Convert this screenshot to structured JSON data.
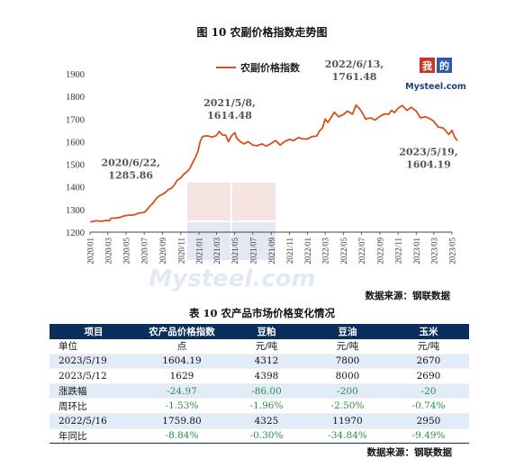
{
  "figure_title": "图 10 农副价格指数走势图",
  "chart_source": "数据来源：钢联数据",
  "table_title": "表 10 农产品市场价格变化情况",
  "table_source": "数据来源：钢联数据",
  "logo": {
    "text": "我的钢铁",
    "brand": "Mysteel.com"
  },
  "chart_data": {
    "type": "line",
    "title": "",
    "xlabel": "",
    "ylabel": "",
    "ylim": [
      1200,
      1900
    ],
    "yticks": [
      1200,
      1300,
      1400,
      1500,
      1600,
      1700,
      1800,
      1900
    ],
    "xlim": [
      "2020/01",
      "2023/05"
    ],
    "xticks": [
      "2020/01",
      "2020/03",
      "2020/05",
      "2020/07",
      "2020/09",
      "2020/11",
      "2021/01",
      "2021/03",
      "2021/05",
      "2021/07",
      "2021/09",
      "2021/11",
      "2022/01",
      "2022/03",
      "2022/05",
      "2022/07",
      "2022/09",
      "2022/11",
      "2023/01",
      "2023/03",
      "2023/05"
    ],
    "grid": false,
    "legend_position": "top-left",
    "series": [
      {
        "name": "农副价格指数",
        "color": "#d5501f",
        "x": [
          "2020/01/02",
          "2020/01/20",
          "2020/02/10",
          "2020/02/25",
          "2020/03/05",
          "2020/03/12",
          "2020/03/25",
          "2020/04/10",
          "2020/04/25",
          "2020/05/10",
          "2020/05/20",
          "2020/06/01",
          "2020/06/10",
          "2020/06/22",
          "2020/07/01",
          "2020/07/10",
          "2020/07/20",
          "2020/08/01",
          "2020/08/10",
          "2020/08/20",
          "2020/09/01",
          "2020/09/10",
          "2020/09/20",
          "2020/10/01",
          "2020/10/10",
          "2020/10/20",
          "2020/11/01",
          "2020/11/10",
          "2020/11/20",
          "2020/12/01",
          "2020/12/10",
          "2020/12/20",
          "2020/12/28",
          "2021/01/05",
          "2021/01/12",
          "2021/01/20",
          "2021/02/01",
          "2021/02/15",
          "2021/03/01",
          "2021/03/10",
          "2021/03/20",
          "2021/04/01",
          "2021/04/10",
          "2021/04/20",
          "2021/05/01",
          "2021/05/08",
          "2021/05/20",
          "2021/06/01",
          "2021/06/15",
          "2021/07/01",
          "2021/07/15",
          "2021/08/01",
          "2021/08/15",
          "2021/09/01",
          "2021/09/15",
          "2021/10/01",
          "2021/10/15",
          "2021/11/01",
          "2021/11/15",
          "2021/12/01",
          "2021/12/15",
          "2022/01/01",
          "2022/01/15",
          "2022/02/01",
          "2022/02/10",
          "2022/02/20",
          "2022/03/01",
          "2022/03/10",
          "2022/03/20",
          "2022/04/01",
          "2022/04/15",
          "2022/05/01",
          "2022/05/15",
          "2022/06/01",
          "2022/06/13",
          "2022/06/25",
          "2022/07/05",
          "2022/07/15",
          "2022/08/01",
          "2022/08/15",
          "2022/09/01",
          "2022/09/15",
          "2022/10/01",
          "2022/10/10",
          "2022/10/20",
          "2022/11/01",
          "2022/11/15",
          "2022/12/01",
          "2022/12/15",
          "2023/01/01",
          "2023/01/15",
          "2023/02/01",
          "2023/02/15",
          "2023/03/01",
          "2023/03/15",
          "2023/04/01",
          "2023/04/10",
          "2023/04/20",
          "2023/05/01",
          "2023/05/10",
          "2023/05/19"
        ],
        "values": [
          1245,
          1250,
          1248,
          1252,
          1250,
          1262,
          1262,
          1265,
          1272,
          1275,
          1275,
          1278,
          1283,
          1285.86,
          1287,
          1298,
          1315,
          1330,
          1348,
          1360,
          1368,
          1375,
          1388,
          1395,
          1408,
          1430,
          1440,
          1455,
          1465,
          1480,
          1505,
          1530,
          1555,
          1600,
          1620,
          1625,
          1625,
          1620,
          1628,
          1645,
          1630,
          1628,
          1600,
          1625,
          1640,
          1614.48,
          1600,
          1590,
          1600,
          1585,
          1582,
          1590,
          1580,
          1592,
          1605,
          1585,
          1600,
          1610,
          1605,
          1618,
          1612,
          1612,
          1622,
          1625,
          1648,
          1660,
          1700,
          1685,
          1705,
          1730,
          1710,
          1720,
          1735,
          1722,
          1761.48,
          1745,
          1725,
          1700,
          1705,
          1695,
          1712,
          1722,
          1722,
          1738,
          1728,
          1748,
          1760,
          1738,
          1752,
          1735,
          1705,
          1710,
          1702,
          1690,
          1665,
          1660,
          1648,
          1632,
          1650,
          1620,
          1604.19
        ]
      }
    ],
    "annotations": [
      {
        "x": "2020/06/22",
        "y": 1285.86,
        "line1": "2020/6/22,",
        "line2": "1285.86"
      },
      {
        "x": "2021/05/08",
        "y": 1614.48,
        "line1": "2021/5/8,",
        "line2": "1614.48"
      },
      {
        "x": "2022/06/13",
        "y": 1761.48,
        "line1": "2022/6/13,",
        "line2": "1761.48"
      },
      {
        "x": "2023/05/19",
        "y": 1604.19,
        "line1": "2023/5/19,",
        "line2": "1604.19"
      }
    ]
  },
  "table": {
    "headers": [
      "项目",
      "农产品价格指数",
      "豆粕",
      "豆油",
      "玉米"
    ],
    "rows": [
      {
        "label": "单位",
        "values": [
          "点",
          "元/吨",
          "元/吨",
          "元/吨"
        ],
        "neg": [
          false,
          false,
          false,
          false
        ]
      },
      {
        "label": "2023/5/19",
        "values": [
          "1604.19",
          "4312",
          "7800",
          "2670"
        ],
        "neg": [
          false,
          false,
          false,
          false
        ]
      },
      {
        "label": "2023/5/12",
        "values": [
          "1629",
          "4398",
          "8000",
          "2690"
        ],
        "neg": [
          false,
          false,
          false,
          false
        ]
      },
      {
        "label": "涨跌幅",
        "values": [
          "-24.97",
          "-86.00",
          "-200",
          "-20"
        ],
        "neg": [
          true,
          true,
          true,
          true
        ]
      },
      {
        "label": "周环比",
        "values": [
          "-1.53%",
          "-1.96%",
          "-2.50%",
          "-0.74%"
        ],
        "neg": [
          true,
          true,
          true,
          true
        ]
      },
      {
        "label": "2022/5/16",
        "values": [
          "1759.80",
          "4325",
          "11970",
          "2950"
        ],
        "neg": [
          false,
          false,
          false,
          false
        ]
      },
      {
        "label": "年同比",
        "values": [
          "-8.84%",
          "-0.30%",
          "-34.84%",
          "-9.49%"
        ],
        "neg": [
          true,
          true,
          true,
          true
        ]
      }
    ]
  }
}
